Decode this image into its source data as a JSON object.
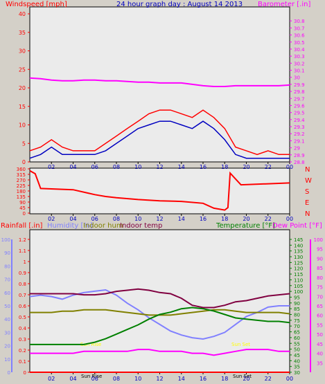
{
  "header": {
    "left_label": "Windspeed [mph]",
    "title": "24 hour graph day : August 14 2013",
    "right_label": "Barometer [.in]"
  },
  "colors": {
    "background": "#d4d0c8",
    "plot_bg": "#ebebeb",
    "wind": "#ff0000",
    "wind_avg": "#0000c0",
    "barometer": "#ff00ff",
    "direction": "#ff0000",
    "rain": "#ff0000",
    "humidity": "#8080ff",
    "indoor_hum": "#808000",
    "indoor_temp": "#800040",
    "temperature": "#008000",
    "dew_point": "#ff00ff",
    "sun_label": "#ffff00",
    "title": "#0000c0"
  },
  "x_ticks": [
    "02",
    "04",
    "06",
    "08",
    "10",
    "12",
    "14",
    "16",
    "18",
    "20",
    "22",
    "00"
  ],
  "bottom_legend": {
    "rainfall": "Rainfall [.in]",
    "humidity": "Humidity [%]",
    "indoor_hum": "Indoor hum",
    "indoor_temp": "Indoor temp",
    "temperature": "Temperature [°F]",
    "dew_point": "Dew Point [°F]"
  },
  "markers": {
    "sun_rise": "Sun Rise",
    "sun_set": "Sun Set",
    "sun_rise_axis": "Sun Rise",
    "sun_set_axis": "Sun Set"
  },
  "chart_data": [
    {
      "type": "line",
      "name": "wind-barometer",
      "x_hours": [
        0,
        1,
        2,
        3,
        4,
        5,
        6,
        7,
        8,
        9,
        10,
        11,
        12,
        13,
        14,
        15,
        16,
        17,
        18,
        19,
        20,
        21,
        22,
        23,
        24
      ],
      "series": [
        {
          "name": "Windspeed",
          "axis": "left",
          "values": [
            3,
            4,
            6,
            4,
            3,
            3,
            3,
            5,
            7,
            9,
            11,
            13,
            14,
            14,
            13,
            12,
            14,
            12,
            9,
            4,
            3,
            2,
            3,
            2,
            2
          ]
        },
        {
          "name": "Windspeed average",
          "axis": "left",
          "values": [
            1,
            2,
            4,
            2,
            2,
            2,
            2,
            3,
            5,
            7,
            9,
            10,
            11,
            11,
            10,
            9,
            11,
            9,
            6,
            2,
            1,
            1,
            1,
            1,
            1
          ]
        },
        {
          "name": "Barometer",
          "axis": "right",
          "values": [
            29.99,
            29.98,
            29.96,
            29.95,
            29.95,
            29.96,
            29.96,
            29.95,
            29.95,
            29.94,
            29.93,
            29.93,
            29.92,
            29.92,
            29.92,
            29.9,
            29.88,
            29.87,
            29.87,
            29.88,
            29.88,
            29.88,
            29.88,
            29.88,
            29.89
          ]
        }
      ],
      "left_axis": {
        "range": [
          0,
          40
        ],
        "ticks": [
          "0",
          "5",
          "10",
          "15",
          "20",
          "25",
          "30",
          "35",
          "40"
        ]
      },
      "right_axis": {
        "range": [
          28.8,
          30.9
        ],
        "ticks": [
          "28.8",
          "28.9",
          "29",
          "29.1",
          "29.2",
          "29.3",
          "29.4",
          "29.5",
          "29.6",
          "29.7",
          "29.8",
          "29.9",
          "30",
          "30.1",
          "30.2",
          "30.3",
          "30.4",
          "30.5",
          "30.6",
          "30.7",
          "30.8"
        ]
      }
    },
    {
      "type": "line",
      "name": "wind-direction",
      "x_hours": [
        0,
        0.5,
        1,
        4,
        6,
        7,
        8,
        10,
        12,
        14,
        16,
        17,
        18,
        18.3,
        18.5,
        19.5,
        24
      ],
      "series": [
        {
          "name": "Wind direction",
          "values": [
            345,
            320,
            200,
            190,
            150,
            135,
            125,
            110,
            100,
            95,
            80,
            40,
            25,
            45,
            325,
            230,
            245
          ]
        }
      ],
      "left_axis": {
        "range": [
          0,
          360
        ],
        "ticks": [
          "0",
          "45",
          "90",
          "135",
          "180",
          "225",
          "270",
          "315",
          "360"
        ]
      },
      "right_labels": [
        "N",
        "W",
        "S",
        "E",
        "N"
      ]
    },
    {
      "type": "line",
      "name": "temperature-humidity-rain",
      "x_hours": [
        0,
        1,
        2,
        3,
        4,
        5,
        6,
        7,
        8,
        9,
        10,
        11,
        12,
        13,
        14,
        15,
        16,
        17,
        18,
        19,
        20,
        21,
        22,
        23,
        24
      ],
      "series": [
        {
          "name": "Rainfall",
          "axis": "rain",
          "values": [
            0,
            0,
            0,
            0,
            0,
            0,
            0,
            0,
            0,
            0,
            0,
            0,
            0,
            0,
            0,
            0,
            0,
            0,
            0,
            0,
            0,
            0,
            0,
            0,
            0
          ]
        },
        {
          "name": "Humidity",
          "axis": "humidity",
          "values": [
            57,
            58,
            57,
            55,
            58,
            60,
            61,
            62,
            58,
            52,
            47,
            41,
            36,
            31,
            28,
            26,
            25,
            27,
            30,
            36,
            42,
            45,
            49,
            50,
            50
          ]
        },
        {
          "name": "Indoor hum",
          "axis": "humidity",
          "values": [
            45,
            45,
            45,
            46,
            46,
            47,
            47,
            47,
            46,
            45,
            44,
            43,
            43,
            43,
            44,
            45,
            46,
            47,
            47,
            46,
            45,
            45,
            45,
            45,
            44
          ]
        },
        {
          "name": "Indoor temp",
          "axis": "temp",
          "values": [
            98,
            98,
            98,
            98,
            98,
            97,
            97,
            98,
            100,
            101,
            102,
            101,
            99,
            98,
            94,
            88,
            86,
            86,
            88,
            91,
            92,
            94,
            96,
            97,
            98
          ]
        },
        {
          "name": "Temperature",
          "axis": "temp",
          "values": [
            54,
            54,
            54,
            54,
            54,
            54,
            56,
            59,
            63,
            67,
            71,
            76,
            80,
            82,
            85,
            86,
            85,
            83,
            80,
            77,
            76,
            75,
            74,
            74,
            73
          ]
        },
        {
          "name": "Dew Point",
          "axis": "dew",
          "values": [
            40,
            40,
            40,
            40,
            40,
            41,
            41,
            41,
            41,
            41,
            42,
            42,
            41,
            41,
            41,
            40,
            40,
            39,
            40,
            41,
            42,
            42,
            42,
            41,
            41
          ]
        }
      ],
      "rain_axis": {
        "range": [
          0,
          1.2
        ],
        "ticks": [
          "0",
          "0.1",
          "0.2",
          "0.3",
          "0.4",
          "0.5",
          "0.6",
          "0.7",
          "0.8",
          "0.9",
          "1",
          "1.1",
          "1.2"
        ]
      },
      "humidity_axis": {
        "range": [
          0,
          100
        ],
        "ticks": [
          "0",
          "10",
          "20",
          "30",
          "40",
          "50",
          "60",
          "70",
          "80",
          "90",
          "100"
        ]
      },
      "temp_axis": {
        "range": [
          30,
          145
        ],
        "ticks": [
          "30",
          "35",
          "40",
          "45",
          "50",
          "55",
          "60",
          "65",
          "70",
          "75",
          "80",
          "85",
          "90",
          "95",
          "100",
          "105",
          "110",
          "115",
          "120",
          "125",
          "130",
          "135",
          "140",
          "145"
        ]
      },
      "dew_axis": {
        "range": [
          30,
          100
        ],
        "ticks": [
          "35",
          "40",
          "45",
          "50",
          "55",
          "60",
          "65",
          "70",
          "75",
          "80",
          "85",
          "90",
          "95",
          "100"
        ]
      }
    }
  ]
}
